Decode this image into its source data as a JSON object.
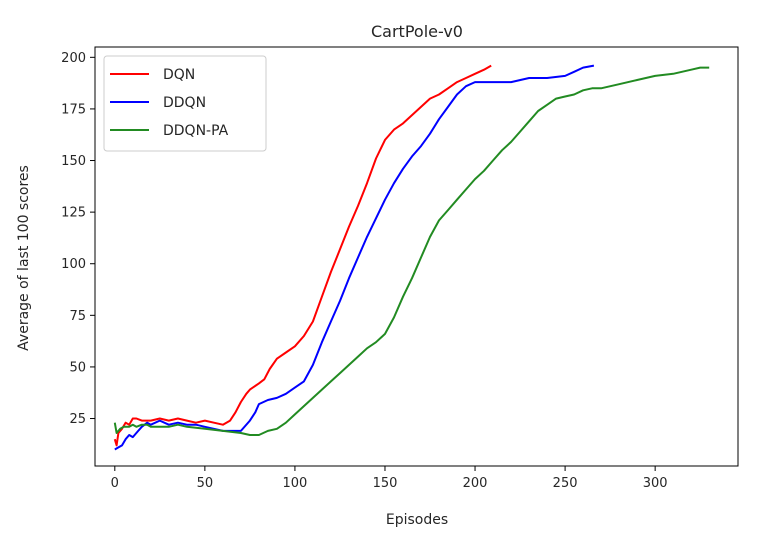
{
  "chart_data": {
    "type": "line",
    "title": "CartPole-v0",
    "xlabel": "Episodes",
    "ylabel": "Average of last 100 scores",
    "xlim": [
      -11,
      346
    ],
    "ylim": [
      2,
      205
    ],
    "xticks": [
      0,
      50,
      100,
      150,
      200,
      250,
      300
    ],
    "yticks": [
      25,
      50,
      75,
      100,
      125,
      150,
      175,
      200
    ],
    "grid": false,
    "legend_position": "top-left",
    "series": [
      {
        "name": "DQN",
        "color": "#ff0000",
        "points": [
          [
            0,
            15
          ],
          [
            1,
            12
          ],
          [
            2,
            18
          ],
          [
            4,
            20
          ],
          [
            6,
            23
          ],
          [
            8,
            22
          ],
          [
            10,
            25
          ],
          [
            12,
            25
          ],
          [
            15,
            24
          ],
          [
            20,
            24
          ],
          [
            25,
            25
          ],
          [
            30,
            24
          ],
          [
            35,
            25
          ],
          [
            40,
            24
          ],
          [
            45,
            23
          ],
          [
            50,
            24
          ],
          [
            55,
            23
          ],
          [
            60,
            22
          ],
          [
            64,
            24
          ],
          [
            67,
            28
          ],
          [
            70,
            33
          ],
          [
            73,
            37
          ],
          [
            75,
            39
          ],
          [
            80,
            42
          ],
          [
            83,
            44
          ],
          [
            86,
            49
          ],
          [
            90,
            54
          ],
          [
            95,
            57
          ],
          [
            100,
            60
          ],
          [
            105,
            65
          ],
          [
            110,
            72
          ],
          [
            115,
            84
          ],
          [
            120,
            96
          ],
          [
            125,
            107
          ],
          [
            130,
            118
          ],
          [
            135,
            128
          ],
          [
            140,
            139
          ],
          [
            145,
            151
          ],
          [
            150,
            160
          ],
          [
            155,
            165
          ],
          [
            160,
            168
          ],
          [
            165,
            172
          ],
          [
            170,
            176
          ],
          [
            175,
            180
          ],
          [
            180,
            182
          ],
          [
            185,
            185
          ],
          [
            190,
            188
          ],
          [
            195,
            190
          ],
          [
            200,
            192
          ],
          [
            205,
            194
          ],
          [
            209,
            196
          ]
        ]
      },
      {
        "name": "DDQN",
        "color": "#0000ff",
        "points": [
          [
            0,
            10
          ],
          [
            2,
            11
          ],
          [
            4,
            12
          ],
          [
            6,
            15
          ],
          [
            8,
            17
          ],
          [
            10,
            16
          ],
          [
            13,
            19
          ],
          [
            15,
            21
          ],
          [
            18,
            23
          ],
          [
            20,
            22
          ],
          [
            25,
            24
          ],
          [
            30,
            22
          ],
          [
            35,
            23
          ],
          [
            40,
            22
          ],
          [
            45,
            22
          ],
          [
            50,
            21
          ],
          [
            55,
            20
          ],
          [
            60,
            19
          ],
          [
            65,
            19
          ],
          [
            70,
            19
          ],
          [
            75,
            24
          ],
          [
            78,
            28
          ],
          [
            80,
            32
          ],
          [
            85,
            34
          ],
          [
            90,
            35
          ],
          [
            95,
            37
          ],
          [
            100,
            40
          ],
          [
            105,
            43
          ],
          [
            110,
            51
          ],
          [
            115,
            62
          ],
          [
            120,
            72
          ],
          [
            125,
            82
          ],
          [
            130,
            93
          ],
          [
            135,
            103
          ],
          [
            140,
            113
          ],
          [
            145,
            122
          ],
          [
            150,
            131
          ],
          [
            155,
            139
          ],
          [
            160,
            146
          ],
          [
            165,
            152
          ],
          [
            170,
            157
          ],
          [
            175,
            163
          ],
          [
            180,
            170
          ],
          [
            185,
            176
          ],
          [
            190,
            182
          ],
          [
            195,
            186
          ],
          [
            200,
            188
          ],
          [
            205,
            188
          ],
          [
            210,
            188
          ],
          [
            220,
            188
          ],
          [
            230,
            190
          ],
          [
            240,
            190
          ],
          [
            250,
            191
          ],
          [
            255,
            193
          ],
          [
            260,
            195
          ],
          [
            266,
            196
          ]
        ]
      },
      {
        "name": "DDQN-PA",
        "color": "#228b22",
        "points": [
          [
            0,
            23
          ],
          [
            1,
            18
          ],
          [
            3,
            20
          ],
          [
            5,
            21
          ],
          [
            8,
            21
          ],
          [
            10,
            22
          ],
          [
            12,
            21
          ],
          [
            15,
            22
          ],
          [
            18,
            22
          ],
          [
            20,
            21
          ],
          [
            25,
            21
          ],
          [
            30,
            21
          ],
          [
            35,
            22
          ],
          [
            40,
            21
          ],
          [
            50,
            20
          ],
          [
            60,
            19
          ],
          [
            70,
            18
          ],
          [
            75,
            17
          ],
          [
            80,
            17
          ],
          [
            85,
            19
          ],
          [
            90,
            20
          ],
          [
            95,
            23
          ],
          [
            100,
            27
          ],
          [
            105,
            31
          ],
          [
            110,
            35
          ],
          [
            115,
            39
          ],
          [
            120,
            43
          ],
          [
            125,
            47
          ],
          [
            130,
            51
          ],
          [
            135,
            55
          ],
          [
            140,
            59
          ],
          [
            145,
            62
          ],
          [
            150,
            66
          ],
          [
            155,
            74
          ],
          [
            160,
            84
          ],
          [
            165,
            93
          ],
          [
            170,
            103
          ],
          [
            175,
            113
          ],
          [
            180,
            121
          ],
          [
            185,
            126
          ],
          [
            190,
            131
          ],
          [
            195,
            136
          ],
          [
            200,
            141
          ],
          [
            205,
            145
          ],
          [
            210,
            150
          ],
          [
            215,
            155
          ],
          [
            220,
            159
          ],
          [
            225,
            164
          ],
          [
            230,
            169
          ],
          [
            235,
            174
          ],
          [
            240,
            177
          ],
          [
            245,
            180
          ],
          [
            250,
            181
          ],
          [
            255,
            182
          ],
          [
            260,
            184
          ],
          [
            265,
            185
          ],
          [
            270,
            185
          ],
          [
            280,
            187
          ],
          [
            290,
            189
          ],
          [
            300,
            191
          ],
          [
            310,
            192
          ],
          [
            320,
            194
          ],
          [
            325,
            195
          ],
          [
            330,
            195
          ]
        ]
      }
    ]
  }
}
